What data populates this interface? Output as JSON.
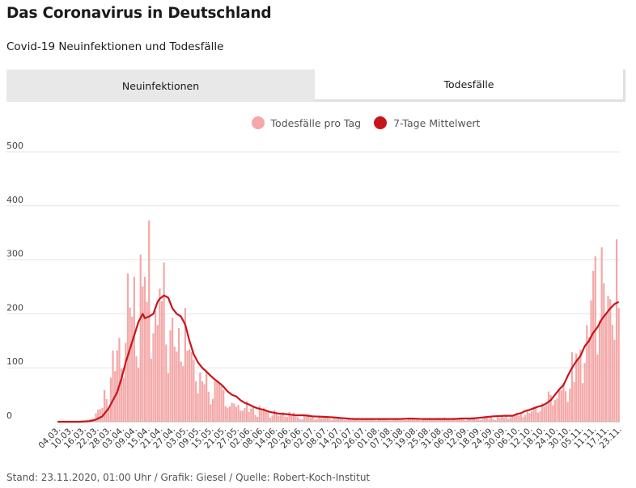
{
  "title": "Das Coronavirus in Deutschland",
  "subtitle": "Covid-19 Neuinfektionen und Todesfälle",
  "tabs": [
    {
      "label": "Neuinfektionen",
      "active": false
    },
    {
      "label": "Todesfälle",
      "active": true
    }
  ],
  "footer": "Stand: 23.11.2020, 01:00 Uhr / Grafik: Giesel / Quelle: Robert-Koch-Institut",
  "colors": {
    "bar": "#f4a8a8",
    "line": "#c8151b",
    "grid": "#e6e6e6",
    "tab_inactive": "#e8e8e8"
  },
  "chart_data": {
    "type": "bar",
    "title": "",
    "xlabel": "",
    "ylabel": "",
    "ylim": [
      0,
      500
    ],
    "yticks": [
      0,
      100,
      200,
      300,
      400,
      500
    ],
    "x_tick_labels": [
      "04.03.",
      "10.03.",
      "16.03.",
      "22.03.",
      "28.03.",
      "03.04.",
      "09.04.",
      "15.04.",
      "21.04.",
      "27.04.",
      "03.05.",
      "09.05.",
      "15.05.",
      "21.05.",
      "27.05.",
      "02.06.",
      "08.06.",
      "14.06.",
      "20.06.",
      "26.06.",
      "02.07.",
      "08.07.",
      "14.07.",
      "20.07.",
      "26.07.",
      "01.08.",
      "07.08.",
      "13.08.",
      "19.08.",
      "25.08.",
      "31.08.",
      "06.09.",
      "12.09.",
      "18.09.",
      "24.09.",
      "30.09.",
      "06.10.",
      "12.10.",
      "18.10.",
      "24.10.",
      "30.10.",
      "05.11.",
      "11.11.",
      "17.11.",
      "23.11."
    ],
    "start_date": "04.03.2020",
    "end_date": "23.11.2020",
    "legend_position": "top-center",
    "series": [
      {
        "name": "Todesfälle pro Tag",
        "kind": "bar",
        "keypoints": [
          [
            0,
            0
          ],
          [
            10,
            1
          ],
          [
            14,
            3
          ],
          [
            16,
            8
          ],
          [
            18,
            15
          ],
          [
            20,
            30
          ],
          [
            22,
            45
          ],
          [
            24,
            70
          ],
          [
            26,
            100
          ],
          [
            28,
            140
          ],
          [
            30,
            160
          ],
          [
            32,
            190
          ],
          [
            34,
            220
          ],
          [
            36,
            260
          ],
          [
            38,
            240
          ],
          [
            40,
            280
          ],
          [
            41,
            300
          ],
          [
            42,
            315
          ],
          [
            44,
            260
          ],
          [
            46,
            210
          ],
          [
            48,
            230
          ],
          [
            50,
            250
          ],
          [
            52,
            220
          ],
          [
            54,
            200
          ],
          [
            56,
            190
          ],
          [
            58,
            180
          ],
          [
            60,
            160
          ],
          [
            62,
            140
          ],
          [
            64,
            120
          ],
          [
            66,
            100
          ],
          [
            68,
            90
          ],
          [
            70,
            80
          ],
          [
            72,
            70
          ],
          [
            74,
            60
          ],
          [
            76,
            55
          ],
          [
            78,
            50
          ],
          [
            80,
            45
          ],
          [
            84,
            35
          ],
          [
            90,
            28
          ],
          [
            95,
            22
          ],
          [
            100,
            18
          ],
          [
            110,
            14
          ],
          [
            120,
            10
          ],
          [
            130,
            8
          ],
          [
            140,
            6
          ],
          [
            160,
            5
          ],
          [
            170,
            5
          ],
          [
            180,
            6
          ],
          [
            190,
            6
          ],
          [
            200,
            7
          ],
          [
            205,
            8
          ],
          [
            210,
            10
          ],
          [
            215,
            12
          ],
          [
            220,
            18
          ],
          [
            225,
            30
          ],
          [
            230,
            45
          ],
          [
            235,
            60
          ],
          [
            240,
            90
          ],
          [
            243,
            110
          ],
          [
            246,
            150
          ],
          [
            249,
            180
          ],
          [
            252,
            220
          ],
          [
            255,
            260
          ],
          [
            258,
            280
          ],
          [
            260,
            305
          ],
          [
            262,
            260
          ],
          [
            264,
            250
          ]
        ],
        "noise": 0.35
      },
      {
        "name": "7-Tage Mittelwert",
        "kind": "line",
        "keypoints": [
          [
            0,
            0
          ],
          [
            10,
            0
          ],
          [
            15,
            1
          ],
          [
            18,
            4
          ],
          [
            21,
            10
          ],
          [
            24,
            25
          ],
          [
            26,
            40
          ],
          [
            28,
            55
          ],
          [
            30,
            80
          ],
          [
            32,
            110
          ],
          [
            34,
            135
          ],
          [
            36,
            160
          ],
          [
            38,
            185
          ],
          [
            40,
            200
          ],
          [
            41,
            192
          ],
          [
            43,
            195
          ],
          [
            45,
            200
          ],
          [
            47,
            222
          ],
          [
            48,
            228
          ],
          [
            50,
            234
          ],
          [
            52,
            230
          ],
          [
            54,
            210
          ],
          [
            56,
            200
          ],
          [
            58,
            195
          ],
          [
            60,
            180
          ],
          [
            62,
            150
          ],
          [
            64,
            125
          ],
          [
            66,
            110
          ],
          [
            68,
            100
          ],
          [
            70,
            93
          ],
          [
            72,
            85
          ],
          [
            74,
            78
          ],
          [
            76,
            72
          ],
          [
            78,
            65
          ],
          [
            80,
            56
          ],
          [
            82,
            50
          ],
          [
            84,
            47
          ],
          [
            86,
            40
          ],
          [
            88,
            35
          ],
          [
            90,
            32
          ],
          [
            92,
            28
          ],
          [
            94,
            25
          ],
          [
            97,
            22
          ],
          [
            100,
            18
          ],
          [
            104,
            15
          ],
          [
            108,
            14
          ],
          [
            112,
            12
          ],
          [
            116,
            12
          ],
          [
            120,
            10
          ],
          [
            126,
            9
          ],
          [
            130,
            8
          ],
          [
            136,
            6
          ],
          [
            140,
            5
          ],
          [
            150,
            5
          ],
          [
            160,
            5
          ],
          [
            166,
            6
          ],
          [
            172,
            5
          ],
          [
            180,
            5
          ],
          [
            186,
            5
          ],
          [
            190,
            6
          ],
          [
            195,
            6
          ],
          [
            200,
            8
          ],
          [
            205,
            10
          ],
          [
            210,
            11
          ],
          [
            214,
            11
          ],
          [
            216,
            14
          ],
          [
            218,
            16
          ],
          [
            220,
            20
          ],
          [
            222,
            22
          ],
          [
            224,
            25
          ],
          [
            226,
            28
          ],
          [
            228,
            30
          ],
          [
            230,
            34
          ],
          [
            232,
            40
          ],
          [
            234,
            50
          ],
          [
            236,
            60
          ],
          [
            238,
            68
          ],
          [
            240,
            85
          ],
          [
            242,
            100
          ],
          [
            244,
            112
          ],
          [
            246,
            122
          ],
          [
            248,
            140
          ],
          [
            250,
            150
          ],
          [
            252,
            165
          ],
          [
            254,
            175
          ],
          [
            256,
            190
          ],
          [
            258,
            200
          ],
          [
            260,
            210
          ],
          [
            262,
            218
          ],
          [
            264,
            222
          ]
        ]
      }
    ]
  }
}
